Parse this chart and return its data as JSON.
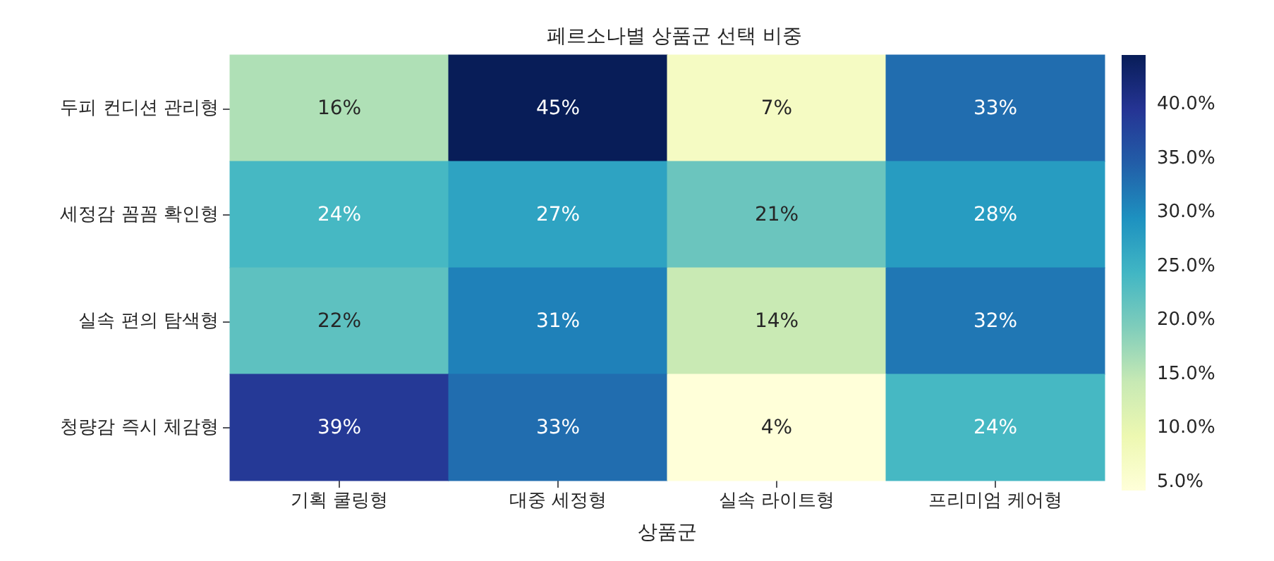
{
  "chart_data": {
    "type": "heatmap",
    "title": "페르소나별 상품군 선택 비중",
    "xlabel": "상품군",
    "categories": [
      "기획 쿨링형",
      "대중 세정형",
      "실속 라이트형",
      "프리미엄 케어형"
    ],
    "y_categories": [
      "두피 컨디션 관리형",
      "세정감 꼼꼼 확인형",
      "실속 편의 탐색형",
      "청량감 즉시 체감형"
    ],
    "cells": [
      [
        16,
        45,
        7,
        33
      ],
      [
        24,
        27,
        21,
        28
      ],
      [
        22,
        31,
        14,
        32
      ],
      [
        39,
        33,
        4,
        24
      ]
    ],
    "cell_labels": [
      [
        "16%",
        "45%",
        "7%",
        "33%"
      ],
      [
        "24%",
        "27%",
        "21%",
        "28%"
      ],
      [
        "22%",
        "31%",
        "14%",
        "32%"
      ],
      [
        "39%",
        "33%",
        "4%",
        "24%"
      ]
    ],
    "clim": [
      4.2,
      44.6
    ],
    "cticks": [
      {
        "value": 5,
        "label": "5.0%"
      },
      {
        "value": 10,
        "label": "10.0%"
      },
      {
        "value": 15,
        "label": "15.0%"
      },
      {
        "value": 20,
        "label": "20.0%"
      },
      {
        "value": 25,
        "label": "25.0%"
      },
      {
        "value": 30,
        "label": "30.0%"
      },
      {
        "value": 35,
        "label": "35.0%"
      },
      {
        "value": 40,
        "label": "40.0%"
      }
    ]
  }
}
